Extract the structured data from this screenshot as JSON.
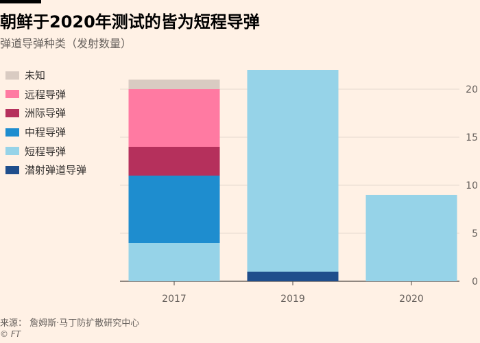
{
  "header": {
    "title": "朝鲜于2020年测试的皆为短程导弹",
    "subtitle": "弹道导弹种类（发射数量）"
  },
  "footer": {
    "source": "来源：  詹姆斯·马丁防扩散研究中心",
    "copyright": "© FT"
  },
  "chart_data": {
    "type": "bar",
    "stacked": true,
    "title": "朝鲜于2020年测试的皆为短程导弹",
    "subtitle": "弹道导弹种类（发射数量）",
    "categories": [
      "2017",
      "2019",
      "2020"
    ],
    "series": [
      {
        "name": "潜射弹道导弹",
        "color": "#1f4e8c",
        "values": [
          0,
          1,
          0
        ]
      },
      {
        "name": "短程导弹",
        "color": "#96d3e8",
        "values": [
          4,
          21,
          9
        ]
      },
      {
        "name": "中程导弹",
        "color": "#1e8dcf",
        "values": [
          7,
          0,
          0
        ]
      },
      {
        "name": "洲际导弹",
        "color": "#b5305c",
        "values": [
          3,
          0,
          0
        ]
      },
      {
        "name": "远程导弹",
        "color": "#ff7aa2",
        "values": [
          6,
          0,
          0
        ]
      },
      {
        "name": "未知",
        "color": "#d9cbc2",
        "values": [
          1,
          0,
          0
        ]
      }
    ],
    "legend_order": [
      "未知",
      "远程导弹",
      "洲际导弹",
      "中程导弹",
      "短程导弹",
      "潜射弹道导弹"
    ],
    "ylim": [
      0,
      22
    ],
    "yticks": [
      0,
      5,
      10,
      15,
      20
    ],
    "y_axis_side": "right",
    "legend_position": "top-left",
    "grid": true
  }
}
